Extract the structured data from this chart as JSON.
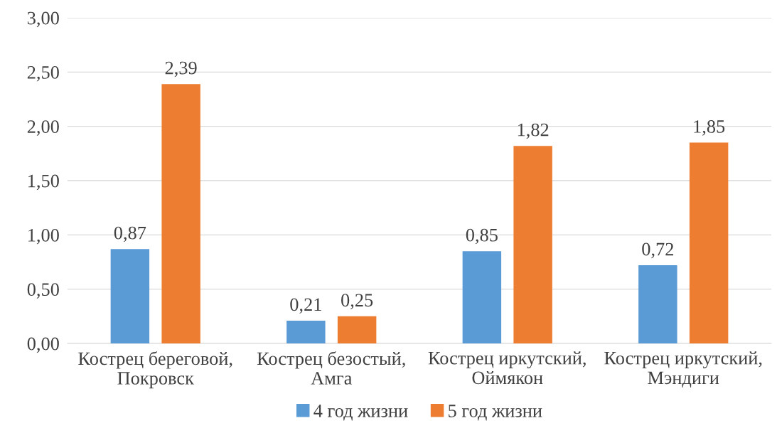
{
  "chart_data": {
    "type": "bar",
    "categories": [
      "Кострец береговой,\nПокровск",
      "Кострец безостый,\nАмга",
      "Кострец иркутский,\nОймякон",
      "Кострец иркутский,\nМэндиги"
    ],
    "series": [
      {
        "name": "4 год жизни",
        "color": "#5b9bd5",
        "values": [
          0.87,
          0.21,
          0.85,
          0.72
        ],
        "value_labels": [
          "0,87",
          "0,21",
          "0,85",
          "0,72"
        ]
      },
      {
        "name": "5 год жизни",
        "color": "#ed7d31",
        "values": [
          2.39,
          0.25,
          1.82,
          1.85
        ],
        "value_labels": [
          "2,39",
          "0,25",
          "1,82",
          "1,85"
        ]
      }
    ],
    "ylim": [
      0,
      3
    ],
    "yticks": [
      {
        "value": 0,
        "label": "0,00"
      },
      {
        "value": 0.5,
        "label": "0,50"
      },
      {
        "value": 1,
        "label": "1,00"
      },
      {
        "value": 1.5,
        "label": "1,50"
      },
      {
        "value": 2,
        "label": "2,00"
      },
      {
        "value": 2.5,
        "label": "2,50"
      },
      {
        "value": 3,
        "label": "3,00"
      }
    ],
    "grid": "y",
    "legend": "bottom"
  }
}
